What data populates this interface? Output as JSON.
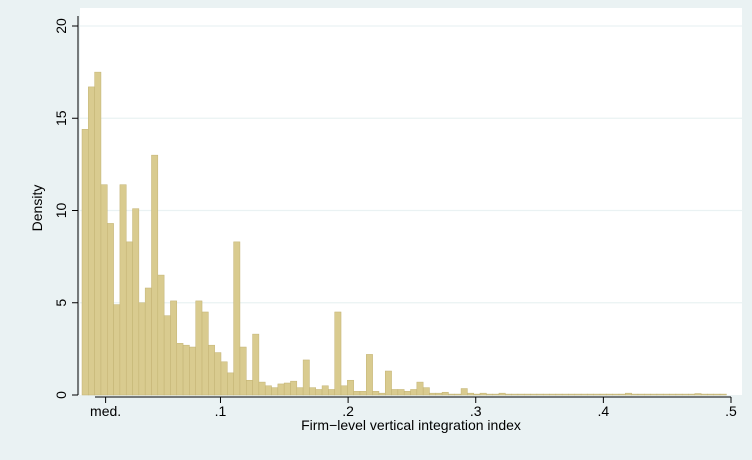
{
  "chart_data": {
    "type": "bar",
    "subtype": "histogram",
    "title": "",
    "xlabel": "Firm−level vertical integration index",
    "ylabel": "Density",
    "xlim": [
      -0.0085,
      0.5
    ],
    "ylim": [
      0,
      20
    ],
    "yticks": [
      0,
      5,
      10,
      15,
      20
    ],
    "xticks": [
      {
        "value": 0.01,
        "label": "med."
      },
      {
        "value": 0.1,
        "label": ".1"
      },
      {
        "value": 0.2,
        "label": ".2"
      },
      {
        "value": 0.3,
        "label": ".3"
      },
      {
        "value": 0.4,
        "label": ".4"
      },
      {
        "value": 0.5,
        "label": ".5"
      }
    ],
    "grid": true,
    "legend": "none",
    "bin_start": -0.0085,
    "bin_width": 0.00495,
    "values": [
      14.4,
      16.7,
      17.5,
      11.4,
      9.3,
      4.9,
      11.4,
      8.3,
      10.1,
      5.0,
      5.8,
      13.0,
      6.5,
      4.3,
      5.1,
      2.8,
      2.7,
      2.6,
      5.1,
      4.5,
      2.7,
      2.3,
      1.8,
      1.2,
      8.3,
      2.6,
      0.8,
      3.3,
      0.7,
      0.5,
      0.4,
      0.6,
      0.65,
      0.75,
      0.4,
      1.9,
      0.4,
      0.3,
      0.5,
      0.3,
      4.5,
      0.5,
      0.8,
      0.2,
      0.2,
      2.2,
      0.2,
      0.1,
      1.3,
      0.3,
      0.3,
      0.2,
      0.3,
      0.7,
      0.4,
      0.1,
      0.1,
      0.15,
      0.05,
      0.05,
      0.35,
      0.1,
      0.05,
      0.1,
      0.05,
      0.05,
      0.1,
      0.05,
      0.05,
      0.05,
      0.05,
      0.05,
      0.05,
      0.05,
      0.05,
      0.05,
      0.05,
      0.05,
      0.05,
      0.05,
      0.05,
      0.05,
      0.05,
      0.05,
      0.05,
      0.05,
      0.1,
      0.05,
      0.05,
      0.05,
      0.05,
      0.05,
      0.05,
      0.05,
      0.05,
      0.05,
      0.05,
      0.08,
      0.05,
      0.05,
      0.05,
      0.05
    ]
  },
  "colors": {
    "outer_background": "#eaf2f3",
    "plot_background": "#ffffff",
    "bar_fill": "#d9cb8f",
    "bar_stroke": "#c2b272",
    "grid": "#eaf2f3",
    "axis": "#000000"
  }
}
